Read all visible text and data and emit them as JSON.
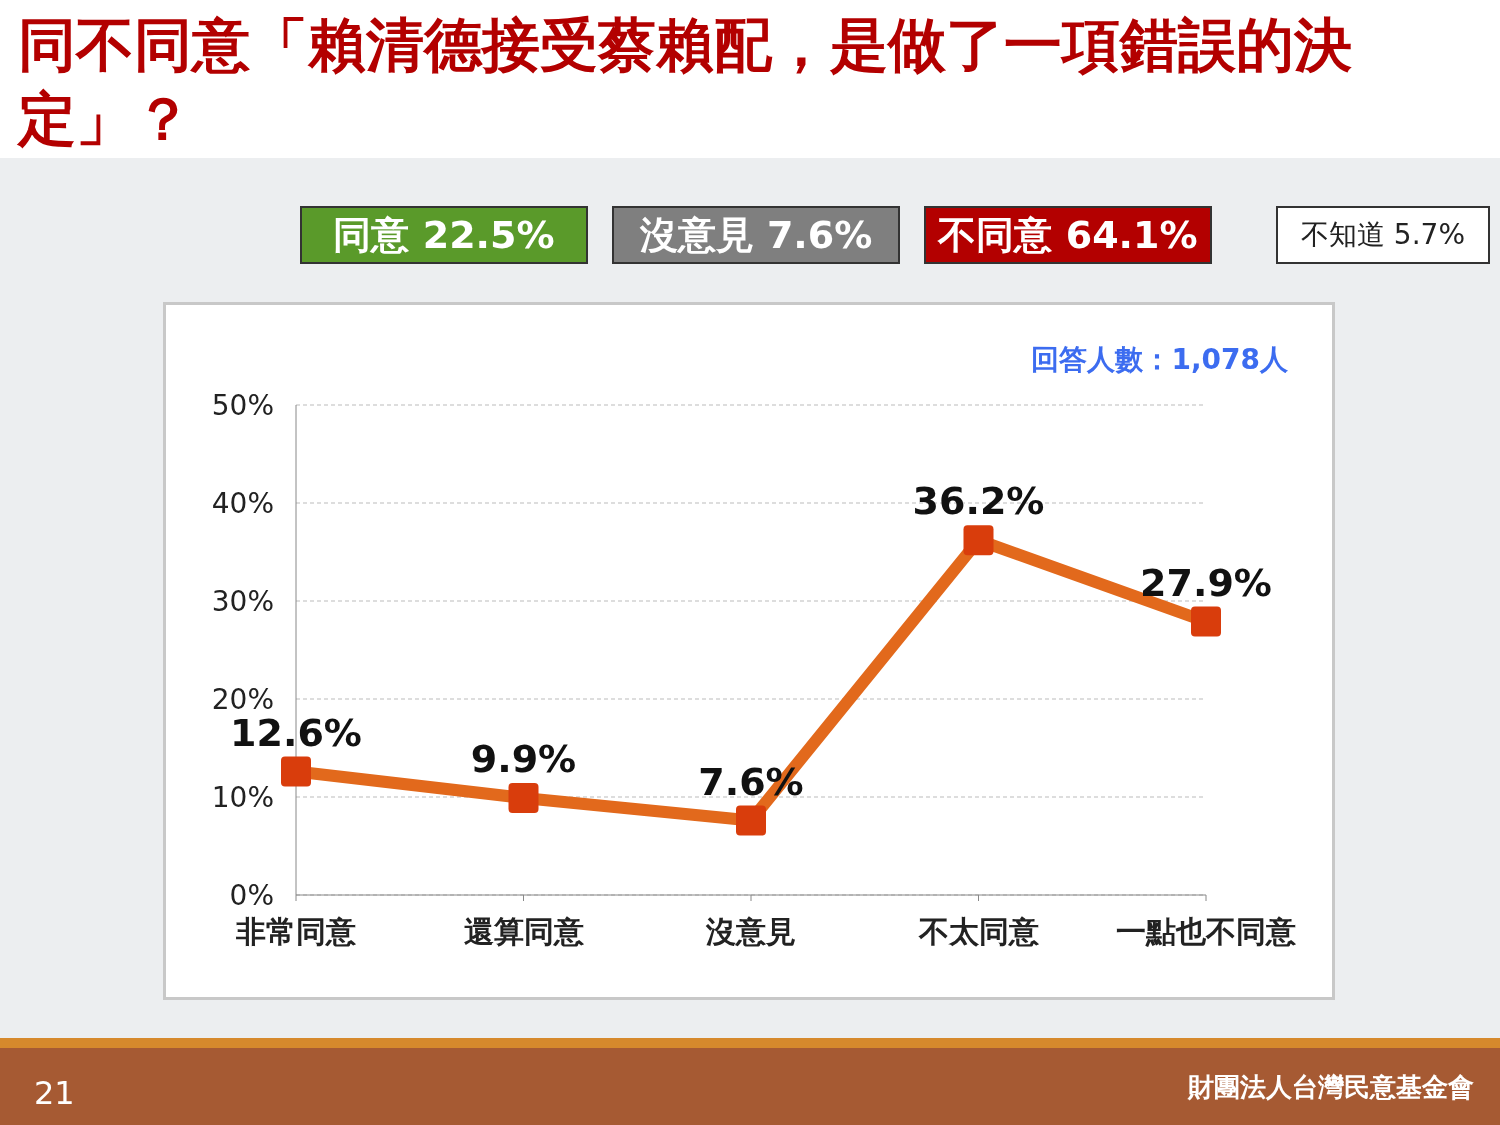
{
  "chart_data": {
    "type": "line",
    "title": "同不同意「賴清德接受蔡賴配，是做了一項錯誤的決定」？",
    "categories": [
      "非常同意",
      "還算同意",
      "沒意見",
      "不太同意",
      "一點也不同意"
    ],
    "series": [
      {
        "color": "#e2691c",
        "values": [
          12.6,
          9.9,
          7.6,
          36.2,
          27.9
        ],
        "value_labels": [
          "12.6%",
          "9.9%",
          "7.6%",
          "36.2%",
          "27.9%"
        ]
      }
    ],
    "ylim": [
      0,
      50
    ],
    "yticks": [
      {
        "value": 0,
        "label": "0%"
      },
      {
        "value": 10,
        "label": "10%"
      },
      {
        "value": 20,
        "label": "20%"
      },
      {
        "value": 30,
        "label": "30%"
      },
      {
        "value": 40,
        "label": "40%"
      },
      {
        "value": 50,
        "label": "50%"
      }
    ],
    "grid": "y",
    "marker": "square",
    "line_style": "solid",
    "annotations": [
      "同意 22.5%",
      "沒意見 7.6%",
      "不同意 64.1%",
      "不知道 5.7%",
      "回答人數：1,078人",
      "21",
      "財團法人台灣民意基金會"
    ]
  }
}
